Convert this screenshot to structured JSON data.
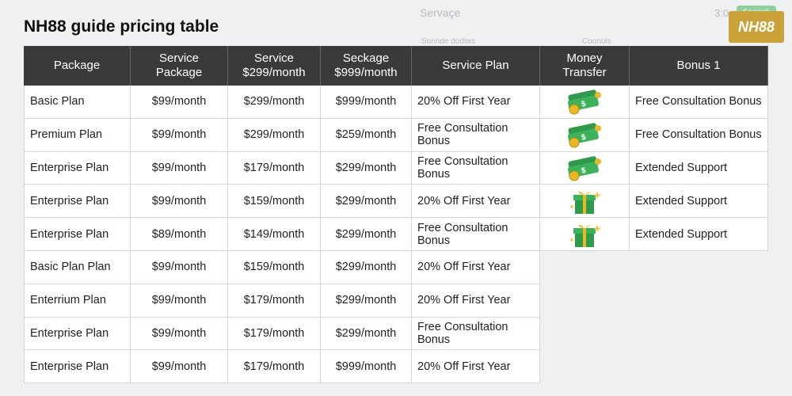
{
  "title": "NH88 guide pricing table",
  "background": {
    "header": "Servaçe",
    "time": "3:0",
    "button": "Soonob",
    "tab1": "Sonnde dodiws",
    "tab2": "Coonols",
    "logo": "NH88"
  },
  "table": {
    "headers": [
      "Package",
      "Service Package",
      "Service $299/month",
      "Seckage $999/month",
      "Service Plan",
      "Money Transfer",
      "Bonus 1"
    ],
    "rows": [
      [
        "Basic Plan",
        "$99/month",
        "$299/month",
        "$999/month",
        "20% Off First Year",
        "",
        "Free Consultation Bonus"
      ],
      [
        "Premium Plan",
        "$99/month",
        "$299/month",
        "$259/month",
        "Free Consultation Bonus",
        "",
        "Free Consultation Bonus"
      ],
      [
        "Enterprise Plan",
        "$99/month",
        "$179/month",
        "$299/month",
        "Free Consultation Bonus",
        "",
        "Extended Support"
      ],
      [
        "Enterprise Plan",
        "$99/month",
        "$159/month",
        "$299/month",
        "20% Off First Year",
        "",
        "Extended Support"
      ],
      [
        "Enterprise Plan",
        "$89/month",
        "$149/month",
        "$299/month",
        "Free Consultation Bonus",
        "",
        "Extended Support"
      ],
      [
        "Basic Plan Plan",
        "$99/month",
        "$159/month",
        "$299/month",
        "20% Off First Year"
      ],
      [
        "Enterrium Plan",
        "$99/month",
        "$179/month",
        "$299/month",
        "20% Off First Year"
      ],
      [
        "Enterprise Plan",
        "$99/month",
        "$179/month",
        "$299/month",
        "Free Consultation Bonus"
      ],
      [
        "Enterprise Plan",
        "$99/month",
        "$179/month",
        "$999/month",
        "20% Off First Year"
      ]
    ]
  }
}
